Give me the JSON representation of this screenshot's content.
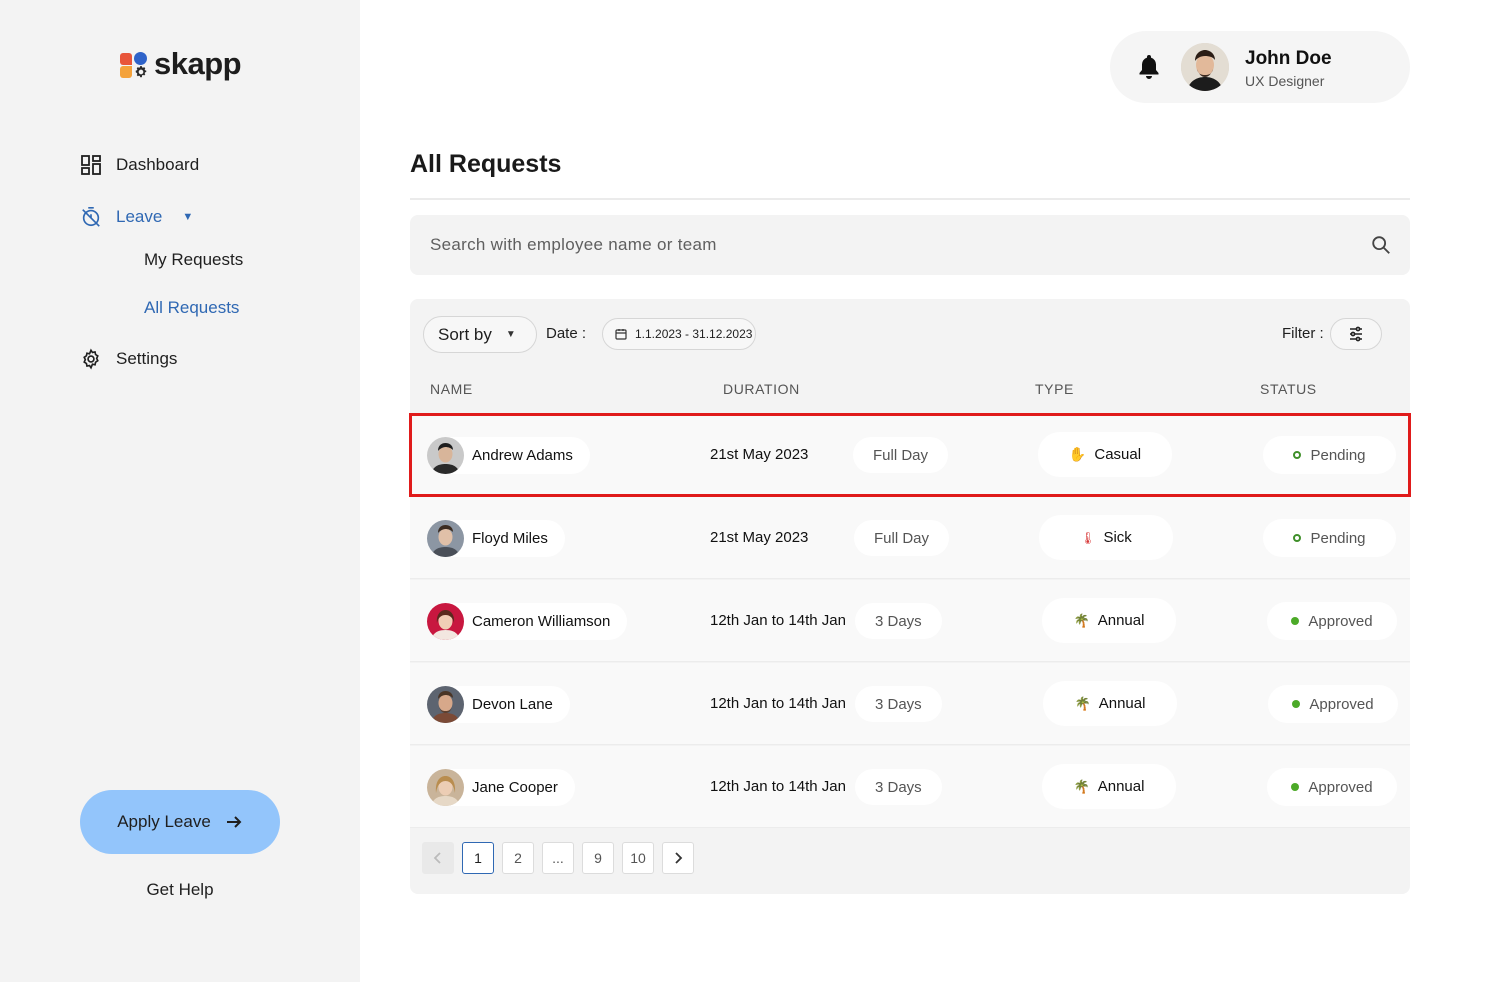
{
  "app": {
    "logo_text": "skapp"
  },
  "sidebar": {
    "dashboard": "Dashboard",
    "leave": "Leave",
    "my_requests": "My Requests",
    "all_requests": "All Requests",
    "settings": "Settings",
    "apply_leave": "Apply Leave",
    "get_help": "Get Help"
  },
  "user": {
    "name": "John Doe",
    "role": "UX Designer"
  },
  "page": {
    "title": "All Requests"
  },
  "search": {
    "placeholder": "Search with employee name or team"
  },
  "toolbar": {
    "sort_by": "Sort by",
    "date_label": "Date :",
    "date_range": "1.1.2023 - 31.12.2023",
    "filter_label": "Filter :"
  },
  "columns": {
    "name": "NAME",
    "duration": "DURATION",
    "type": "TYPE",
    "status": "STATUS"
  },
  "rows": [
    {
      "name": "Andrew Adams",
      "date": "21st May 2023",
      "length": "Full Day",
      "type": "Casual",
      "type_icon": "waving-hand-icon",
      "status": "Pending"
    },
    {
      "name": "Floyd Miles",
      "date": "21st May 2023",
      "length": "Full Day",
      "type": "Sick",
      "type_icon": "thermometer-icon",
      "status": "Pending"
    },
    {
      "name": "Cameron Williamson",
      "date": "12th Jan to 14th Jan",
      "length": "3 Days",
      "type": "Annual",
      "type_icon": "palm-tree-icon",
      "status": "Approved"
    },
    {
      "name": "Devon Lane",
      "date": "12th Jan to 14th Jan",
      "length": "3 Days",
      "type": "Annual",
      "type_icon": "palm-tree-icon",
      "status": "Approved"
    },
    {
      "name": "Jane Cooper",
      "date": "12th Jan to 14th Jan",
      "length": "3 Days",
      "type": "Annual",
      "type_icon": "palm-tree-icon",
      "status": "Approved"
    }
  ],
  "pagination": {
    "pages": [
      "1",
      "2",
      "...",
      "9",
      "10"
    ],
    "current": "1"
  },
  "colors": {
    "accent": "#2f68b3",
    "apply_button": "#93c5fb",
    "highlight": "#e01b1b",
    "approved": "#4caa28"
  }
}
